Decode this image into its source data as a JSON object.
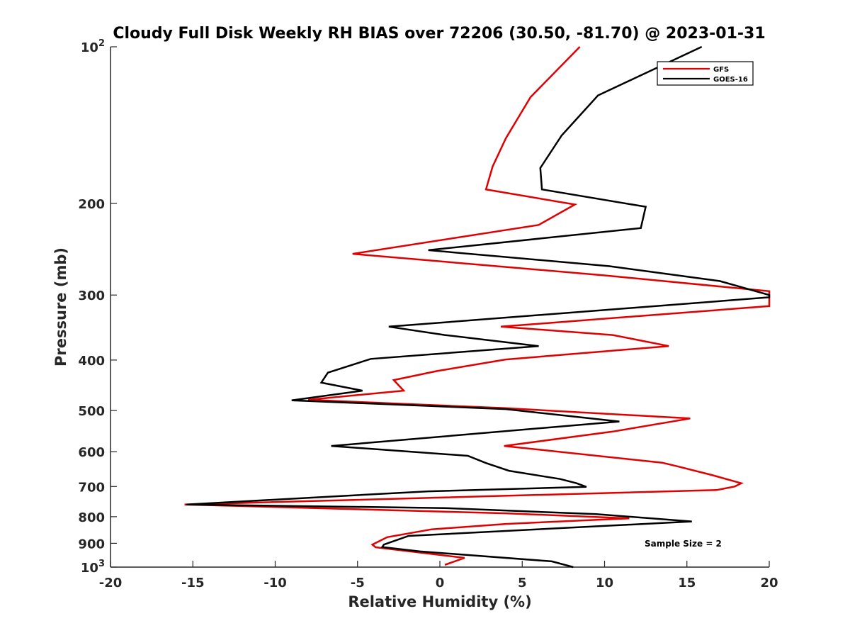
{
  "chart_data": {
    "type": "line",
    "title": "Cloudy Full Disk Weekly RH BIAS over 72206 (30.50, -81.70) @ 2023-01-31",
    "xlabel": "Relative Humidity (%)",
    "ylabel": "Pressure (mb)",
    "xlim": [
      -20,
      20
    ],
    "ylim": [
      100,
      1000
    ],
    "yscale": "log",
    "yreversed": true,
    "xticks": [
      -20,
      -15,
      -10,
      -5,
      0,
      5,
      10,
      15,
      20
    ],
    "xtick_labels": [
      "-20",
      "-15",
      "-10",
      "-5",
      "0",
      "5",
      "10",
      "15",
      "20"
    ],
    "yticks": [
      100,
      200,
      300,
      400,
      500,
      600,
      700,
      800,
      900,
      1000
    ],
    "ytick_labels": [
      {
        "base": "10",
        "exp": "2"
      },
      {
        "base": "200",
        "exp": ""
      },
      {
        "base": "300",
        "exp": ""
      },
      {
        "base": "400",
        "exp": ""
      },
      {
        "base": "500",
        "exp": ""
      },
      {
        "base": "600",
        "exp": ""
      },
      {
        "base": "700",
        "exp": ""
      },
      {
        "base": "800",
        "exp": ""
      },
      {
        "base": "900",
        "exp": ""
      },
      {
        "base": "10",
        "exp": "3"
      }
    ],
    "legend_position": "top-right",
    "annotation": "Sample Size = 2",
    "series": [
      {
        "name": "GFS",
        "color": "#e00000",
        "points": [
          [
            8.5,
            100
          ],
          [
            5.5,
            125
          ],
          [
            4,
            150
          ],
          [
            3.2,
            170
          ],
          [
            2.8,
            188
          ],
          [
            8.2,
            201
          ],
          [
            6,
            220
          ],
          [
            -5.3,
            250
          ],
          [
            10,
            275
          ],
          [
            20,
            295
          ],
          [
            20,
            315
          ],
          [
            3.7,
            345
          ],
          [
            10.5,
            358
          ],
          [
            13.9,
            376
          ],
          [
            4,
            399
          ],
          [
            -0.2,
            420
          ],
          [
            -2.8,
            437
          ],
          [
            -2.2,
            458
          ],
          [
            -8,
            477
          ],
          [
            4,
            495
          ],
          [
            15.2,
            518
          ],
          [
            10.5,
            549
          ],
          [
            3.9,
            585
          ],
          [
            13.5,
            630
          ],
          [
            14.4,
            640
          ],
          [
            16.5,
            665
          ],
          [
            18.3,
            690
          ],
          [
            17.9,
            700
          ],
          [
            16.8,
            711
          ],
          [
            -15.5,
            758
          ],
          [
            4,
            788
          ],
          [
            11.5,
            806
          ],
          [
            4,
            826
          ],
          [
            -0.5,
            846
          ],
          [
            -3.2,
            876
          ],
          [
            -4.1,
            905
          ],
          [
            -3.9,
            916
          ],
          [
            1.5,
            960
          ],
          [
            0.3,
            990
          ]
        ]
      },
      {
        "name": "GOES-16",
        "color": "#000000",
        "points": [
          [
            15.9,
            100
          ],
          [
            9.6,
            124
          ],
          [
            7.4,
            148
          ],
          [
            6.1,
            171
          ],
          [
            6.2,
            188
          ],
          [
            12.5,
            203
          ],
          [
            12.2,
            223
          ],
          [
            -0.7,
            246
          ],
          [
            10.3,
            264
          ],
          [
            17,
            282
          ],
          [
            20,
            300
          ],
          [
            20,
            303
          ],
          [
            -3.1,
            345
          ],
          [
            0.3,
            358
          ],
          [
            6,
            376
          ],
          [
            -4.2,
            398
          ],
          [
            -6.8,
            423
          ],
          [
            -7.2,
            442
          ],
          [
            -4.7,
            458
          ],
          [
            -9,
            478
          ],
          [
            4,
            497
          ],
          [
            10.9,
            525
          ],
          [
            -6.6,
            585
          ],
          [
            1.7,
            611
          ],
          [
            2.8,
            631
          ],
          [
            4.2,
            653
          ],
          [
            7.3,
            677
          ],
          [
            8.3,
            690
          ],
          [
            8.9,
            701
          ],
          [
            -0.7,
            715
          ],
          [
            -6,
            730
          ],
          [
            -15.4,
            758
          ],
          [
            0.3,
            770
          ],
          [
            9.5,
            791
          ],
          [
            15.3,
            817
          ],
          [
            -1.9,
            871
          ],
          [
            -3.4,
            905
          ],
          [
            -3.5,
            915
          ],
          [
            -1.2,
            933
          ],
          [
            6.8,
            975
          ],
          [
            8.1,
            1000
          ]
        ]
      }
    ]
  }
}
